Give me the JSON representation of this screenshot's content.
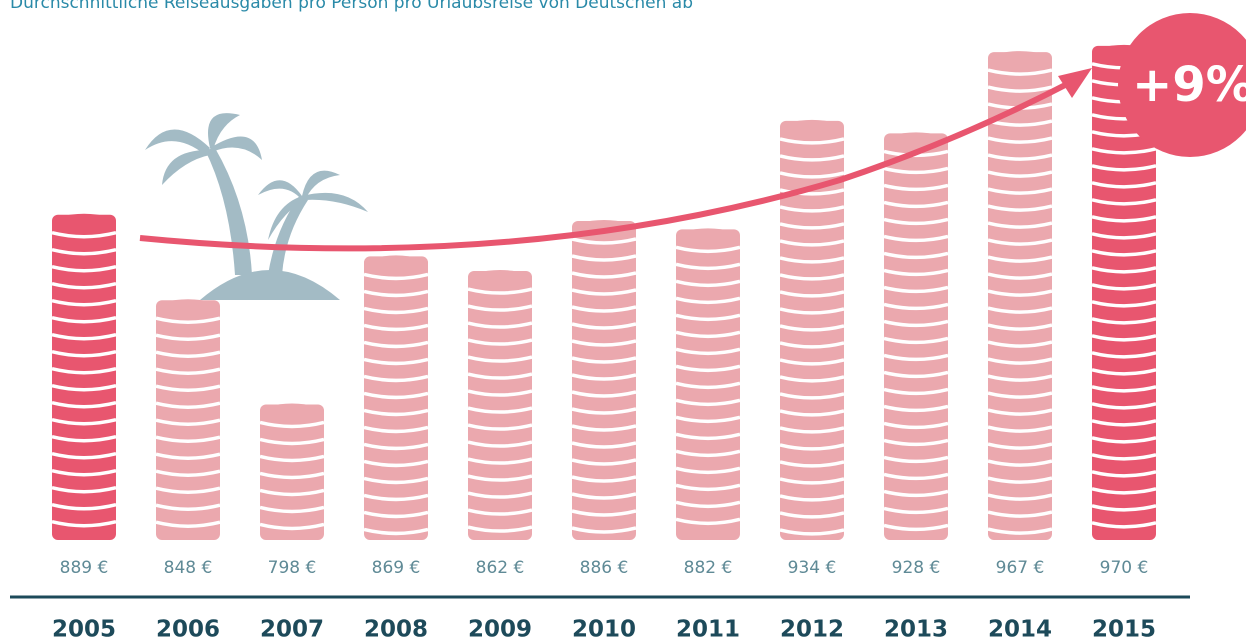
{
  "chart_data": {
    "type": "coin-stack",
    "title": "Durchschnittliche Reiseausgaben pro Person pro Urlaubsreise von Deutschen ab",
    "categories": [
      "2005",
      "2006",
      "2007",
      "2008",
      "2009",
      "2010",
      "2011",
      "2012",
      "2013",
      "2014",
      "2015"
    ],
    "values": [
      889,
      848,
      798,
      869,
      862,
      886,
      882,
      934,
      928,
      967,
      970
    ],
    "value_labels": [
      "889 €",
      "848 €",
      "798 €",
      "869 €",
      "862 €",
      "886 €",
      "882 €",
      "934 €",
      "928 €",
      "967 €",
      "970 €"
    ],
    "colors": [
      "#e8566f",
      "#eba8ae",
      "#eba8ae",
      "#eba8ae",
      "#eba8ae",
      "#eba8ae",
      "#eba8ae",
      "#eba8ae",
      "#eba8ae",
      "#eba8ae",
      "#e8566f"
    ],
    "ylim": [
      733,
      980
    ],
    "annotation": "+9%"
  }
}
